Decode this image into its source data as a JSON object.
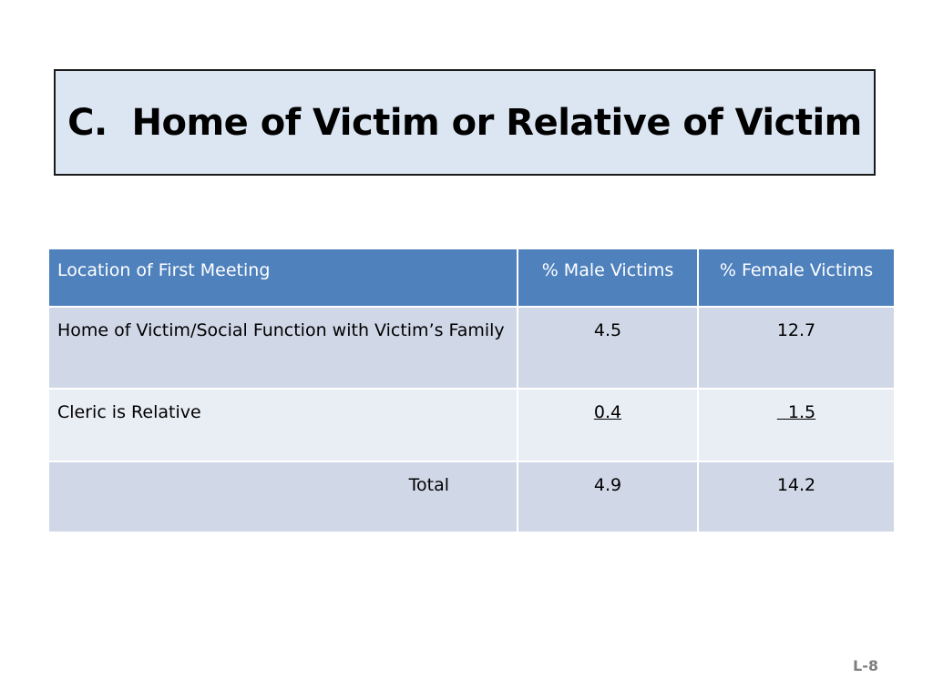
{
  "slide": {
    "title": "C.  Home of Victim or Relative of Victim",
    "page_number": "L-8"
  },
  "table": {
    "headers": [
      "Location of First Meeting",
      "% Male Victims",
      "% Female Victims"
    ],
    "rows": [
      {
        "label": "Home of Victim/Social Function with Victim’s Family",
        "male": "4.5",
        "female": "12.7"
      },
      {
        "label": "Cleric is Relative",
        "male": "0.4",
        "female": "  1.5"
      },
      {
        "label": "Total",
        "male": "4.9",
        "female": "14.2"
      }
    ]
  },
  "colors": {
    "title_background": "#dce6f2",
    "header_background": "#4f81bd",
    "row_dark": "#d0d8e8",
    "row_light": "#e9edf4",
    "page_number_color": "#7f7f7f"
  }
}
